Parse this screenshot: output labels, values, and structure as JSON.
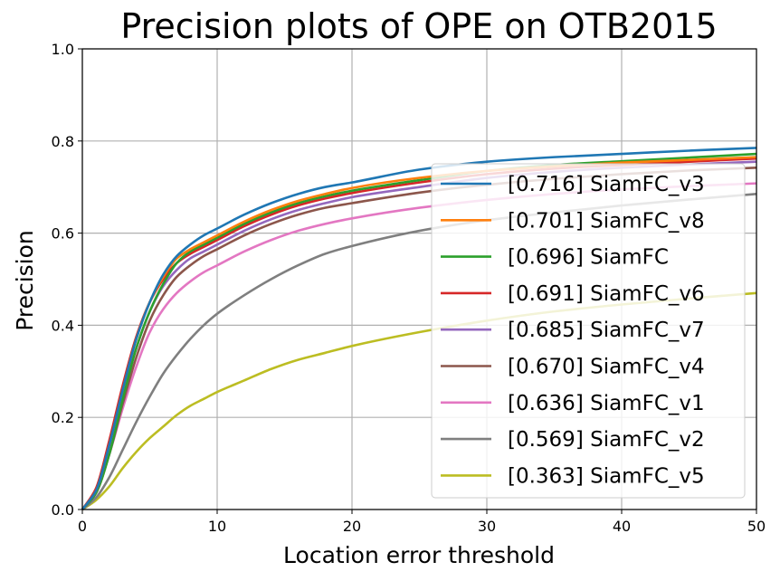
{
  "chart_data": {
    "type": "line",
    "title": "Precision plots of OPE on OTB2015",
    "xlabel": "Location error threshold",
    "ylabel": "Precision",
    "xlim": [
      0,
      50
    ],
    "ylim": [
      0,
      1
    ],
    "xticks": [
      0,
      10,
      20,
      30,
      40,
      50
    ],
    "yticks": [
      0.0,
      0.2,
      0.4,
      0.6,
      0.8,
      1.0
    ],
    "xtick_labels": [
      "0",
      "10",
      "20",
      "30",
      "40",
      "50"
    ],
    "ytick_labels": [
      "0.0",
      "0.2",
      "0.4",
      "0.6",
      "0.8",
      "1.0"
    ],
    "grid": true,
    "legend_position": "lower-right",
    "x": [
      0,
      1,
      2,
      3,
      4,
      5,
      6,
      7,
      8,
      9,
      10,
      12,
      14,
      16,
      18,
      20,
      25,
      30,
      35,
      40,
      45,
      50
    ],
    "series": [
      {
        "name": "[0.716] SiamFC_v3",
        "color": "#1f77b4",
        "values": [
          0,
          0.04,
          0.14,
          0.26,
          0.37,
          0.45,
          0.51,
          0.55,
          0.575,
          0.595,
          0.61,
          0.64,
          0.665,
          0.685,
          0.7,
          0.71,
          0.738,
          0.755,
          0.765,
          0.772,
          0.779,
          0.785
        ]
      },
      {
        "name": "[0.701] SiamFC_v8",
        "color": "#ff7f0e",
        "values": [
          0,
          0.04,
          0.14,
          0.26,
          0.37,
          0.45,
          0.505,
          0.545,
          0.565,
          0.58,
          0.595,
          0.625,
          0.65,
          0.67,
          0.685,
          0.698,
          0.72,
          0.735,
          0.745,
          0.753,
          0.759,
          0.765
        ]
      },
      {
        "name": "[0.696] SiamFC",
        "color": "#2ca02c",
        "values": [
          0,
          0.035,
          0.12,
          0.24,
          0.35,
          0.43,
          0.49,
          0.535,
          0.56,
          0.575,
          0.59,
          0.62,
          0.645,
          0.665,
          0.68,
          0.692,
          0.715,
          0.735,
          0.748,
          0.756,
          0.764,
          0.772
        ]
      },
      {
        "name": "[0.691] SiamFC_v6",
        "color": "#d62728",
        "values": [
          0,
          0.045,
          0.15,
          0.27,
          0.375,
          0.45,
          0.5,
          0.535,
          0.555,
          0.57,
          0.585,
          0.615,
          0.64,
          0.66,
          0.675,
          0.687,
          0.71,
          0.728,
          0.74,
          0.748,
          0.755,
          0.762
        ]
      },
      {
        "name": "[0.685] SiamFC_v7",
        "color": "#9467bd",
        "values": [
          0,
          0.04,
          0.14,
          0.25,
          0.35,
          0.43,
          0.485,
          0.52,
          0.545,
          0.56,
          0.575,
          0.605,
          0.63,
          0.65,
          0.665,
          0.678,
          0.7,
          0.72,
          0.733,
          0.742,
          0.749,
          0.755
        ]
      },
      {
        "name": "[0.670] SiamFC_v4",
        "color": "#8c564b",
        "values": [
          0,
          0.035,
          0.12,
          0.23,
          0.33,
          0.41,
          0.465,
          0.505,
          0.53,
          0.55,
          0.565,
          0.595,
          0.62,
          0.64,
          0.655,
          0.665,
          0.688,
          0.705,
          0.718,
          0.728,
          0.736,
          0.742
        ]
      },
      {
        "name": "[0.636] SiamFC_v1",
        "color": "#e377c2",
        "values": [
          0,
          0.035,
          0.12,
          0.22,
          0.31,
          0.385,
          0.435,
          0.47,
          0.495,
          0.515,
          0.53,
          0.56,
          0.585,
          0.605,
          0.62,
          0.632,
          0.655,
          0.672,
          0.685,
          0.695,
          0.702,
          0.708
        ]
      },
      {
        "name": "[0.569] SiamFC_v2",
        "color": "#7f7f7f",
        "values": [
          0,
          0.025,
          0.07,
          0.13,
          0.19,
          0.245,
          0.295,
          0.335,
          0.37,
          0.4,
          0.425,
          0.465,
          0.5,
          0.53,
          0.555,
          0.572,
          0.605,
          0.628,
          0.645,
          0.66,
          0.673,
          0.685
        ]
      },
      {
        "name": "[0.363] SiamFC_v5",
        "color": "#bcbd22",
        "values": [
          0,
          0.02,
          0.05,
          0.09,
          0.125,
          0.155,
          0.18,
          0.205,
          0.225,
          0.24,
          0.255,
          0.28,
          0.305,
          0.325,
          0.34,
          0.355,
          0.385,
          0.41,
          0.43,
          0.445,
          0.458,
          0.47
        ]
      }
    ]
  }
}
